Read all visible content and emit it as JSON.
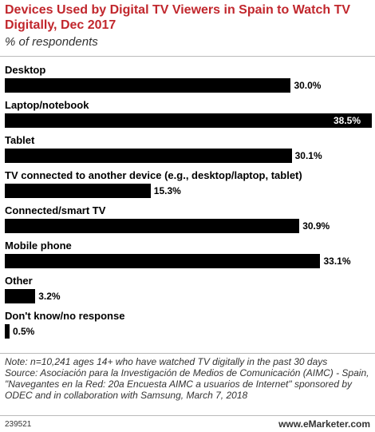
{
  "chart_data": {
    "type": "bar",
    "orientation": "horizontal",
    "title": "Devices Used by Digital TV Viewers in Spain to Watch TV Digitally, Dec 2017",
    "subtitle": "% of respondents",
    "categories": [
      "Desktop",
      "Laptop/notebook",
      "Tablet",
      "TV connected to another device (e.g., desktop/laptop, tablet)",
      "Connected/smart TV",
      "Mobile phone",
      "Other",
      "Don't know/no response"
    ],
    "values": [
      30.0,
      38.5,
      30.1,
      15.3,
      30.9,
      33.1,
      3.2,
      0.5
    ],
    "value_labels": [
      "30.0%",
      "38.5%",
      "30.1%",
      "15.3%",
      "30.9%",
      "33.1%",
      "3.2%",
      "0.5%"
    ],
    "color": "#000000",
    "title_color": "#c1272d",
    "note": "Note: n=10,241 ages 14+ who have watched TV digitally in the past 30 days",
    "source": "Source: Asociación para la Investigación de Medios de Comunicación (AIMC) - Spain, \"Navegantes en la Red: 20a Encuesta AIMC a usuarios de Internet\" sponsored by ODEC and in collaboration with Samsung, March 7, 2018",
    "chart_id": "239521",
    "publisher": "www.eMarketer.com"
  }
}
